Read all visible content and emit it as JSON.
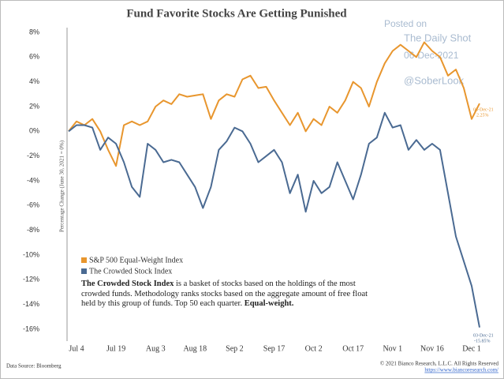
{
  "chart_data": {
    "type": "line",
    "title": "Fund Favorite Stocks Are Getting Punished",
    "y_label": "Percentage Change (June 30, 2021 = 0%)",
    "categories": [
      null,
      "Jul 4",
      null,
      null,
      null,
      null,
      "Jul 19",
      null,
      null,
      null,
      null,
      "Aug 3",
      null,
      null,
      null,
      null,
      "Aug 18",
      null,
      null,
      null,
      null,
      "Sep 2",
      null,
      null,
      null,
      null,
      "Sep 17",
      null,
      null,
      null,
      null,
      "Oct 2",
      null,
      null,
      null,
      null,
      "Oct 17",
      null,
      null,
      null,
      null,
      "Nov 1",
      null,
      null,
      null,
      null,
      "Nov 16",
      null,
      null,
      null,
      null,
      "Dec 1",
      null
    ],
    "series": [
      {
        "name": "S&P 500 Equal-Weight Index",
        "color": "#e8962e",
        "values": [
          0,
          0.8,
          0.5,
          1,
          0,
          -1.5,
          -2.8,
          0.5,
          0.8,
          0.5,
          0.8,
          2,
          2.5,
          2.2,
          3,
          2.8,
          2.9,
          3,
          1,
          2.5,
          3,
          2.8,
          4.2,
          4.5,
          3.5,
          3.6,
          2.5,
          1.5,
          0.5,
          1.5,
          0,
          1,
          0.5,
          2,
          1.5,
          2.5,
          4,
          3.5,
          2,
          4,
          5.5,
          6.5,
          7,
          6.5,
          6,
          7.2,
          6.5,
          6,
          4.5,
          5,
          3.5,
          1,
          2.25
        ]
      },
      {
        "name": "The Crowded Stock Index",
        "color": "#4a6a92",
        "values": [
          0,
          0.5,
          0.5,
          0.3,
          -1.5,
          -0.5,
          -1,
          -2.5,
          -4.5,
          -5.3,
          -1,
          -1.5,
          -2.5,
          -2.3,
          -2.5,
          -3.5,
          -4.5,
          -6.2,
          -4.5,
          -1.5,
          -0.8,
          0.3,
          0,
          -1,
          -2.5,
          -2,
          -1.5,
          -2.5,
          -5,
          -3.5,
          -6.5,
          -4,
          -5,
          -4.5,
          -2.5,
          -4,
          -5.5,
          -3.5,
          -1,
          -0.5,
          1.5,
          0.3,
          0.5,
          -1.5,
          -0.7,
          -1.5,
          -1,
          -1.5,
          -5,
          -8.5,
          -10.5,
          -12.5,
          -15.85
        ]
      }
    ],
    "ylim": [
      -17,
      8.5
    ],
    "yticks": [
      {
        "value": -16,
        "label": "-16%"
      },
      {
        "value": -14,
        "label": "-14%"
      },
      {
        "value": -12,
        "label": "-12%"
      },
      {
        "value": -10,
        "label": "-10%"
      },
      {
        "value": -8,
        "label": "-8%"
      },
      {
        "value": -6,
        "label": "-6%"
      },
      {
        "value": -4,
        "label": "-4%"
      },
      {
        "value": -2,
        "label": "-2%"
      },
      {
        "value": 0,
        "label": "0%"
      },
      {
        "value": 2,
        "label": "2%"
      },
      {
        "value": 4,
        "label": "4%"
      },
      {
        "value": 6,
        "label": "6%"
      },
      {
        "value": 8,
        "label": "8%"
      }
    ],
    "annotations": [
      {
        "date": "03-Dec-21",
        "value": "2.25%"
      },
      {
        "date": "03-Dec-21",
        "value": "-15.85%"
      }
    ],
    "description": {
      "lead": "The Crowded Stock Index",
      "body": "is a basket of stocks based on the holdings of the most crowded funds. Methodology ranks stocks based on the aggregate amount of free float held by this group of funds. Top 50 each quarter.",
      "tail": "Equal-weight."
    },
    "watermark": [
      "Posted on",
      "The Daily Shot",
      "06-Dec-2021",
      "@SoberLook"
    ],
    "source": "Data Source: Bloomberg",
    "copyright": "© 2021 Bianco Research, L.L.C. All Rights Reserved",
    "url": "https://www.biancoresearch.com/"
  }
}
